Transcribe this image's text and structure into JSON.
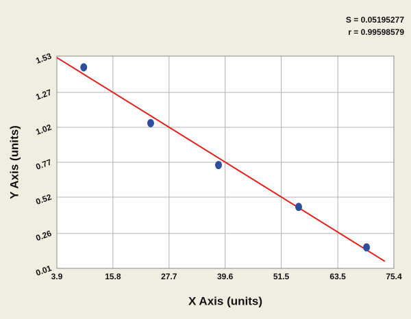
{
  "chart_data": {
    "type": "scatter",
    "annotations": [
      "S = 0.05195277",
      "r = 0.99598579"
    ],
    "x_label": "X Axis (units)",
    "y_label": "Y Axis (units)",
    "series": [
      {
        "x": [
          9.6,
          23.8,
          38.2,
          55.2,
          69.6
        ],
        "values": [
          1.45,
          1.05,
          0.75,
          0.45,
          0.16
        ],
        "color": "#2f4f9e"
      }
    ],
    "fit_line": {
      "x": [
        3.9,
        73.5
      ],
      "y": [
        1.52,
        0.06
      ],
      "color": "#e0201c"
    },
    "xlim": [
      3.9,
      75.4
    ],
    "xticks": [
      3.9,
      15.8,
      27.7,
      39.6,
      51.5,
      63.5,
      75.4
    ],
    "ylim": [
      0.01,
      1.53
    ],
    "yticks": [
      {
        "value": 0.01,
        "label": "0.01"
      },
      0.26,
      0.52,
      0.77,
      1.02,
      1.27,
      1.53
    ],
    "grid": true
  }
}
